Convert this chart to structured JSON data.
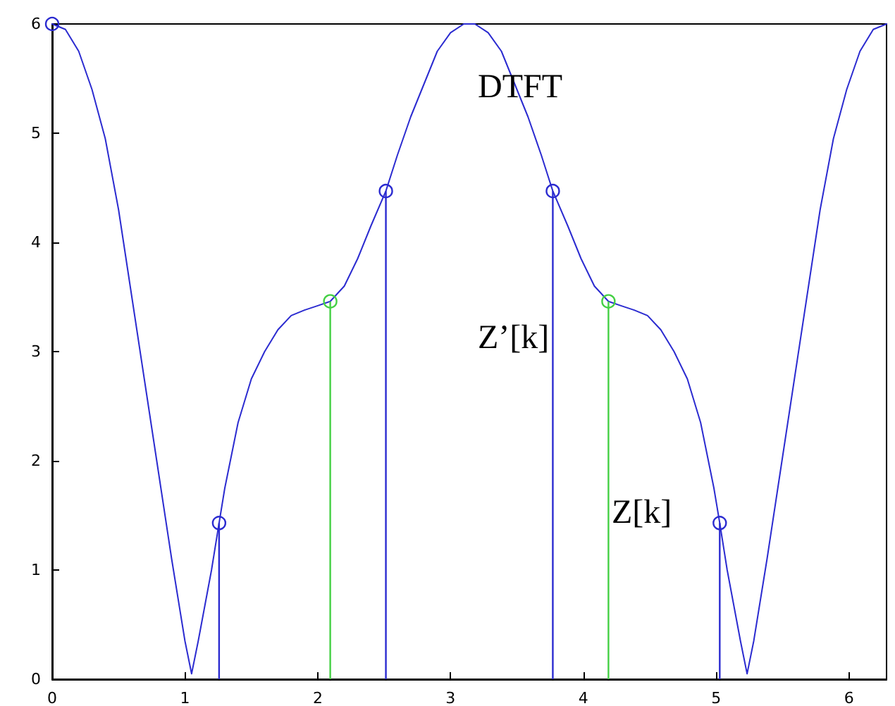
{
  "chart_data": {
    "type": "line",
    "xlim": [
      0,
      6.283
    ],
    "ylim": [
      0,
      6
    ],
    "xticks": [
      0,
      1,
      2,
      3,
      4,
      5,
      6
    ],
    "yticks": [
      0,
      1,
      2,
      3,
      4,
      5,
      6
    ],
    "grid": false,
    "series": [
      {
        "color": "#2b2bd0",
        "marker": "none",
        "x": [
          0,
          0.1,
          0.2,
          0.3,
          0.4,
          0.5,
          0.6,
          0.7,
          0.8,
          0.9,
          1.0,
          1.05,
          1.1,
          1.2,
          1.257,
          1.3,
          1.4,
          1.5,
          1.6,
          1.7,
          1.8,
          1.9,
          2.0,
          2.094,
          2.2,
          2.3,
          2.4,
          2.513,
          2.6,
          2.7,
          2.8,
          2.9,
          3.0,
          3.1,
          3.142,
          3.183,
          3.283,
          3.383,
          3.483,
          3.583,
          3.683,
          3.77,
          3.883,
          3.983,
          4.083,
          4.189,
          4.283,
          4.383,
          4.483,
          4.583,
          4.683,
          4.783,
          4.883,
          4.983,
          5.027,
          5.083,
          5.183,
          5.233,
          5.283,
          5.383,
          5.483,
          5.583,
          5.683,
          5.783,
          5.883,
          5.983,
          6.083,
          6.183,
          6.283
        ],
        "values": [
          6,
          5.95,
          5.75,
          5.4,
          4.95,
          4.3,
          3.5,
          2.7,
          1.9,
          1.1,
          0.35,
          0.05,
          0.35,
          1.0,
          1.43,
          1.75,
          2.35,
          2.75,
          3.0,
          3.2,
          3.33,
          3.38,
          3.42,
          3.46,
          3.6,
          3.85,
          4.15,
          4.47,
          4.8,
          5.15,
          5.45,
          5.75,
          5.92,
          6.0,
          6.0,
          6.0,
          5.92,
          5.75,
          5.45,
          5.15,
          4.8,
          4.47,
          4.15,
          3.85,
          3.6,
          3.46,
          3.42,
          3.38,
          3.33,
          3.2,
          3.0,
          2.75,
          2.35,
          1.75,
          1.43,
          1.0,
          0.35,
          0.05,
          0.35,
          1.1,
          1.9,
          2.7,
          3.5,
          4.3,
          4.95,
          5.4,
          5.75,
          5.95,
          6
        ]
      },
      {
        "type": "lollipop",
        "color": "#2b2bd0",
        "marker": "circle",
        "x": [
          0,
          1.257,
          2.513,
          3.77,
          5.027
        ],
        "values": [
          6,
          1.43,
          4.47,
          4.47,
          1.43
        ]
      },
      {
        "type": "lollipop",
        "color": "#44d044",
        "marker": "circle",
        "x": [
          2.094,
          4.189
        ],
        "values": [
          3.46,
          3.46
        ]
      }
    ],
    "annotations": [
      "DTFT",
      "Z’[k]",
      "Z[k]"
    ]
  }
}
